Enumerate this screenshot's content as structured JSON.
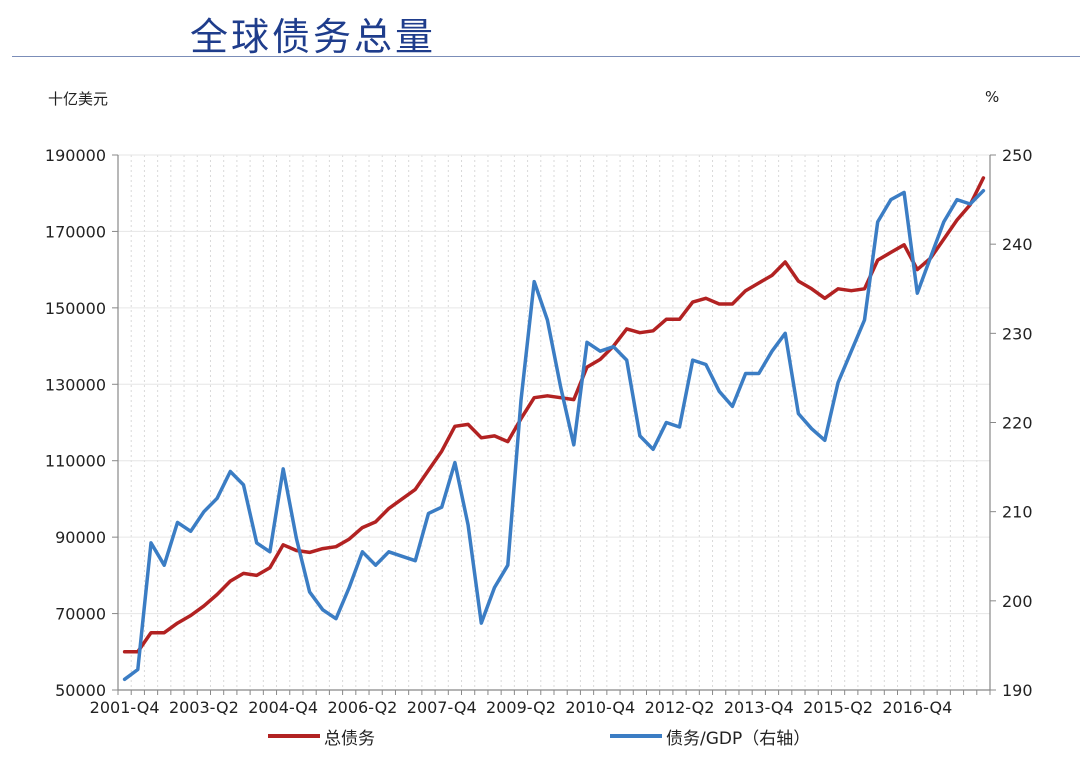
{
  "page": {
    "title": "全球债务总量",
    "left_unit": "十亿美元",
    "right_unit": "%"
  },
  "chart_data": {
    "type": "line",
    "title": "全球债务总量",
    "x_tick_labels": [
      "2001-Q4",
      "2003-Q2",
      "2004-Q4",
      "2006-Q2",
      "2007-Q4",
      "2009-Q2",
      "2010-Q4",
      "2012-Q2",
      "2013-Q4",
      "2015-Q2",
      "2016-Q4"
    ],
    "x_tick_index": [
      0,
      6,
      12,
      18,
      24,
      30,
      36,
      42,
      48,
      54,
      60
    ],
    "y_left": {
      "label": "十亿美元",
      "lim": [
        50000,
        190000
      ],
      "ticks": [
        50000,
        70000,
        90000,
        110000,
        130000,
        150000,
        170000,
        190000
      ]
    },
    "y_right": {
      "label": "%",
      "lim": [
        190,
        250
      ],
      "ticks": [
        190,
        200,
        210,
        220,
        230,
        240,
        250
      ]
    },
    "grid": true,
    "legend_position": "bottom",
    "series": [
      {
        "name": "总债务",
        "axis": "left",
        "color": "#b22222",
        "values": [
          60000,
          60000,
          65000,
          65000,
          67500,
          69500,
          72000,
          75000,
          78500,
          80500,
          80000,
          82000,
          88000,
          86500,
          86000,
          87000,
          87500,
          89500,
          92500,
          94000,
          97500,
          100000,
          102500,
          107500,
          112500,
          119000,
          119500,
          116000,
          116500,
          115000,
          121000,
          126500,
          127000,
          126500,
          126000,
          134500,
          136500,
          140000,
          144500,
          143500,
          144000,
          147000,
          147000,
          151500,
          152500,
          151000,
          151000,
          154500,
          156500,
          158500,
          162000,
          157000,
          155000,
          152500,
          155000,
          154500,
          155000,
          162500,
          164500,
          166500,
          160000,
          163000,
          168000,
          173000,
          177000,
          184000
        ]
      },
      {
        "name": "债务/GDP（右轴）",
        "axis": "right",
        "color": "#3b7dc4",
        "values": [
          191.2,
          192.3,
          206.5,
          204.0,
          208.8,
          207.8,
          210.0,
          211.5,
          214.5,
          213.0,
          206.5,
          205.5,
          214.8,
          207.0,
          201.0,
          199.0,
          198.0,
          201.5,
          205.5,
          204.0,
          205.5,
          205.0,
          204.5,
          209.8,
          210.5,
          215.5,
          208.5,
          197.5,
          201.5,
          204.0,
          222.5,
          235.8,
          231.5,
          224.0,
          217.5,
          229.0,
          228.0,
          228.5,
          227.0,
          218.5,
          217.0,
          220.0,
          219.5,
          227.0,
          226.5,
          223.5,
          221.8,
          225.5,
          225.5,
          228.0,
          230.0,
          221.0,
          219.3,
          218.0,
          224.5,
          228.0,
          231.5,
          242.5,
          245.0,
          245.8,
          234.5,
          238.5,
          242.5,
          245.0,
          244.5,
          246.0
        ]
      }
    ]
  }
}
